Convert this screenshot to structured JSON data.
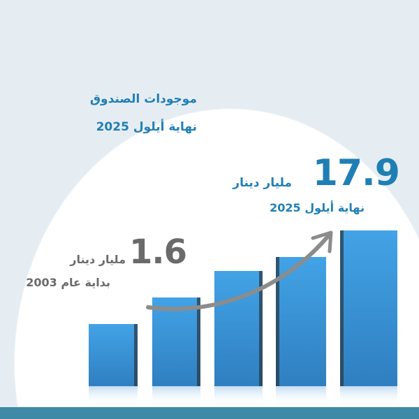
{
  "header": {
    "title": "موجودات الصندوق",
    "subtitle": "نهاية أيلول 2025"
  },
  "end_value": {
    "amount": "17.9",
    "unit": "مليار دينار",
    "date": "نهاية أيلول 2025"
  },
  "start_value": {
    "amount": "1.6",
    "unit": "مليار دينار",
    "date": "بداية عام 2003"
  },
  "colors": {
    "accent_blue": "#1f7fb5",
    "bar_blue": "#3a97dc",
    "gray_text": "#6a6a6a",
    "footer_strip": "#3e8aa6"
  },
  "graphic": {
    "bars": 5,
    "arrow": "upward-trend-arrow"
  }
}
